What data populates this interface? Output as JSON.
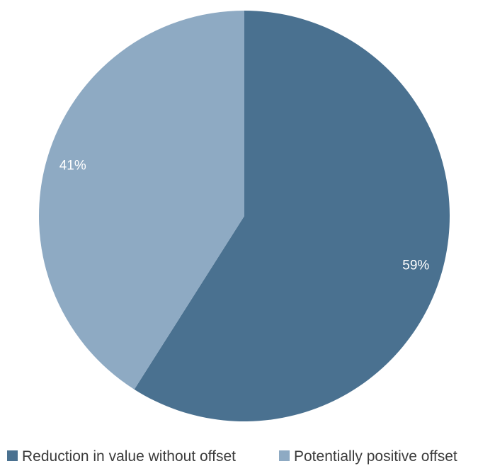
{
  "chart_data": {
    "type": "pie",
    "categories": [
      "Reduction in value without offset",
      "Potentially positive offset"
    ],
    "values": [
      59,
      41
    ],
    "labels": [
      "59%",
      "41%"
    ],
    "colors": [
      "#4a7190",
      "#8eaac3"
    ],
    "label_color": "#ffffff",
    "start_angle_deg": 0,
    "direction": "clockwise",
    "legend": {
      "placement": "bottom",
      "items": [
        {
          "label": "Reduction in value without offset",
          "color": "#4a7190"
        },
        {
          "label": "Potentially positive offset",
          "color": "#8eaac3"
        }
      ]
    }
  }
}
